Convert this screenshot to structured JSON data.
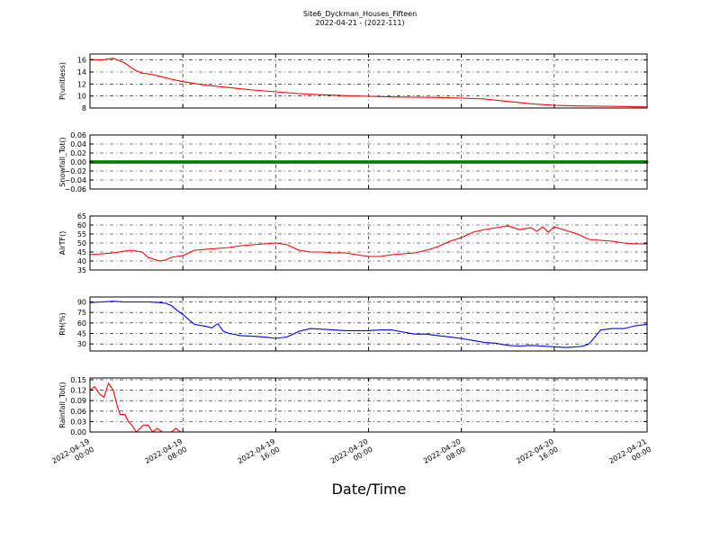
{
  "figure": {
    "title": "Site6_Dyckman_Houses_Fifteen",
    "subtitle": "2022-04-21 - (2022-111)",
    "xlabel": "Date/Time"
  },
  "chart_data": [
    {
      "type": "line",
      "ylabel": "P(unitless)",
      "ylim": [
        8,
        17
      ],
      "yticks": [
        "16",
        "14",
        "12",
        "10",
        "8"
      ],
      "ytick_values": [
        16,
        14,
        12,
        10,
        8
      ],
      "grid": true,
      "series": [
        {
          "color": "#ff0000",
          "x": [
            0,
            1,
            2,
            3,
            3.5,
            4,
            4.5,
            5,
            6,
            7,
            8,
            10,
            12,
            14,
            16,
            18,
            20,
            22,
            24,
            26,
            28,
            30,
            32,
            34,
            36,
            38,
            40,
            42,
            44,
            46,
            47,
            48
          ],
          "y": [
            16.1,
            16.0,
            16.3,
            15.5,
            14.8,
            14.2,
            13.8,
            13.7,
            13.3,
            12.8,
            12.4,
            11.8,
            11.4,
            11.0,
            10.7,
            10.4,
            10.2,
            10.05,
            9.95,
            9.85,
            9.8,
            9.75,
            9.65,
            9.5,
            9.1,
            8.7,
            8.45,
            8.35,
            8.3,
            8.25,
            8.2,
            8.2
          ]
        }
      ]
    },
    {
      "type": "line",
      "ylabel": "Snowfall_Tot()",
      "ylim": [
        -0.06,
        0.06
      ],
      "yticks": [
        "0.06",
        "0.04",
        "0.02",
        "0.00",
        "−0.02",
        "−0.04",
        "−0.06"
      ],
      "ytick_values": [
        0.06,
        0.04,
        0.02,
        0.0,
        -0.02,
        -0.04,
        -0.06
      ],
      "grid": true,
      "series": [
        {
          "color": "#008000",
          "markers": true,
          "x": [
            0,
            48
          ],
          "y": [
            0.0,
            0.0
          ]
        }
      ]
    },
    {
      "type": "line",
      "ylabel": "AirTF()",
      "ylim": [
        35,
        65
      ],
      "yticks": [
        "65",
        "60",
        "55",
        "50",
        "45",
        "40",
        "35"
      ],
      "ytick_values": [
        65,
        60,
        55,
        50,
        45,
        40,
        35
      ],
      "grid": true,
      "series": [
        {
          "color": "#ff0000",
          "x": [
            0,
            1,
            2,
            3,
            3.5,
            4.5,
            5,
            6,
            6.5,
            7,
            7.5,
            8,
            9,
            10,
            11,
            12,
            13,
            14,
            15,
            16,
            17,
            18,
            19,
            20,
            21,
            22,
            23,
            24,
            25,
            26,
            27,
            28,
            29,
            30,
            31,
            32,
            33,
            34,
            35,
            36,
            37,
            38,
            38.5,
            39,
            39.5,
            40,
            40.5,
            41,
            41.5,
            42,
            43,
            44,
            45,
            46,
            47,
            48
          ],
          "y": [
            43.5,
            44,
            44.5,
            45.5,
            46,
            45,
            42,
            40,
            40.5,
            42,
            42.5,
            43,
            46,
            46.5,
            47,
            47.5,
            48.5,
            49,
            49.5,
            50,
            49,
            46,
            45,
            45,
            44.5,
            44.5,
            43.5,
            42.5,
            42.5,
            43.5,
            44,
            44.5,
            46,
            48,
            51,
            53,
            56,
            57.5,
            58.5,
            59.5,
            57.5,
            58.5,
            56.5,
            59,
            56,
            59,
            58,
            57,
            56,
            55,
            52,
            51.5,
            51,
            50,
            49.5,
            49.5
          ]
        }
      ]
    },
    {
      "type": "line",
      "ylabel": "RH(%)",
      "ylim": [
        20,
        97
      ],
      "yticks": [
        "90",
        "75",
        "60",
        "45",
        "30"
      ],
      "ytick_values": [
        90,
        75,
        60,
        45,
        30
      ],
      "grid": true,
      "series": [
        {
          "color": "#0000ff",
          "x": [
            0,
            1,
            2,
            3,
            4,
            5,
            6,
            6.5,
            7,
            7.5,
            8,
            8.5,
            9,
            10,
            10.5,
            11,
            11.5,
            12,
            13,
            14,
            15,
            16,
            17,
            18,
            19,
            20,
            21,
            22,
            23,
            24,
            25,
            26,
            27,
            28,
            29,
            30,
            31,
            32,
            33,
            34,
            35,
            36,
            37,
            38,
            39,
            40,
            41,
            42,
            42.5,
            43,
            44,
            45,
            46,
            47,
            48
          ],
          "y": [
            89,
            90,
            91,
            90,
            90,
            90,
            89,
            88,
            85,
            78,
            72,
            65,
            58,
            55,
            53,
            59,
            48,
            45,
            42,
            41,
            40,
            38,
            40,
            48,
            52,
            51,
            50,
            49,
            49,
            49,
            50,
            50,
            47,
            44,
            44,
            42,
            40,
            38,
            35,
            32,
            31,
            28,
            27,
            28,
            27,
            26,
            25,
            26,
            27,
            30,
            50,
            52,
            52,
            56,
            58
          ]
        }
      ]
    },
    {
      "type": "line",
      "ylabel": "Rainfall_Tot()",
      "ylim": [
        0.0,
        0.155
      ],
      "yticks": [
        "0.15",
        "0.12",
        "0.09",
        "0.06",
        "0.03",
        "0.00"
      ],
      "ytick_values": [
        0.15,
        0.12,
        0.09,
        0.06,
        0.03,
        0.0
      ],
      "grid": true,
      "series": [
        {
          "color": "#ff0000",
          "x": [
            0,
            0.4,
            0.8,
            1.2,
            1.6,
            2.0,
            2.3,
            2.6,
            3.0,
            3.3,
            3.6,
            4.0,
            4.3,
            4.6,
            5.0,
            5.4,
            5.8,
            6.2,
            6.6,
            7.0,
            7.4,
            7.8,
            8.2,
            48
          ],
          "y": [
            0.12,
            0.13,
            0.11,
            0.1,
            0.14,
            0.12,
            0.08,
            0.05,
            0.05,
            0.03,
            0.02,
            0.0,
            0.01,
            0.02,
            0.02,
            0.0,
            0.01,
            0.0,
            0.0,
            0.0,
            0.01,
            0.0,
            0.0,
            0.0
          ]
        }
      ]
    }
  ],
  "x_axis": {
    "unit": "hours since 2022-04-19 00:00",
    "range": [
      0,
      48
    ],
    "ticks": [
      {
        "value": 0,
        "line1": "2022-04-19",
        "line2": "00:00"
      },
      {
        "value": 8,
        "line1": "2022-04-19",
        "line2": "08:00"
      },
      {
        "value": 16,
        "line1": "2022-04-19",
        "line2": "16:00"
      },
      {
        "value": 24,
        "line1": "2022-04-20",
        "line2": "00:00"
      },
      {
        "value": 32,
        "line1": "2022-04-20",
        "line2": "08:00"
      },
      {
        "value": 40,
        "line1": "2022-04-20",
        "line2": "16:00"
      },
      {
        "value": 48,
        "line1": "2022-04-21",
        "line2": "00:00"
      }
    ]
  }
}
